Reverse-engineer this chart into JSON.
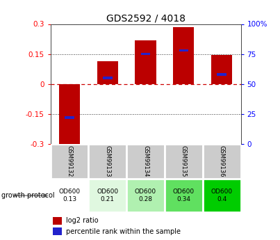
{
  "title": "GDS2592 / 4018",
  "samples": [
    "GSM99132",
    "GSM99133",
    "GSM99134",
    "GSM99135",
    "GSM99136"
  ],
  "log2_ratio": [
    -0.305,
    0.115,
    0.22,
    0.285,
    0.145
  ],
  "percentile_rank": [
    22,
    55,
    75,
    78,
    58
  ],
  "growth_protocol_lines": [
    [
      "OD600",
      "0.13"
    ],
    [
      "OD600",
      "0.21"
    ],
    [
      "OD600",
      "0.28"
    ],
    [
      "OD600",
      "0.34"
    ],
    [
      "OD600",
      "0.4"
    ]
  ],
  "green_shades": [
    "#ffffff",
    "#e0f8e0",
    "#b0f0b0",
    "#60e060",
    "#00cc00"
  ],
  "bar_width": 0.55,
  "ymin": -0.3,
  "ymax": 0.3,
  "yticks_left": [
    -0.3,
    -0.15,
    0,
    0.15,
    0.3
  ],
  "yticks_right": [
    0,
    25,
    50,
    75,
    100
  ],
  "red_color": "#bb0000",
  "blue_color": "#2222cc",
  "bg_color": "#ffffff",
  "zero_line_color": "#cc0000",
  "dotted_color": "#333333",
  "gray_cell": "#cccccc",
  "cell_edge": "#888888",
  "label_log2": "log2 ratio",
  "label_pct": "percentile rank within the sample",
  "growth_label": "growth protocol"
}
